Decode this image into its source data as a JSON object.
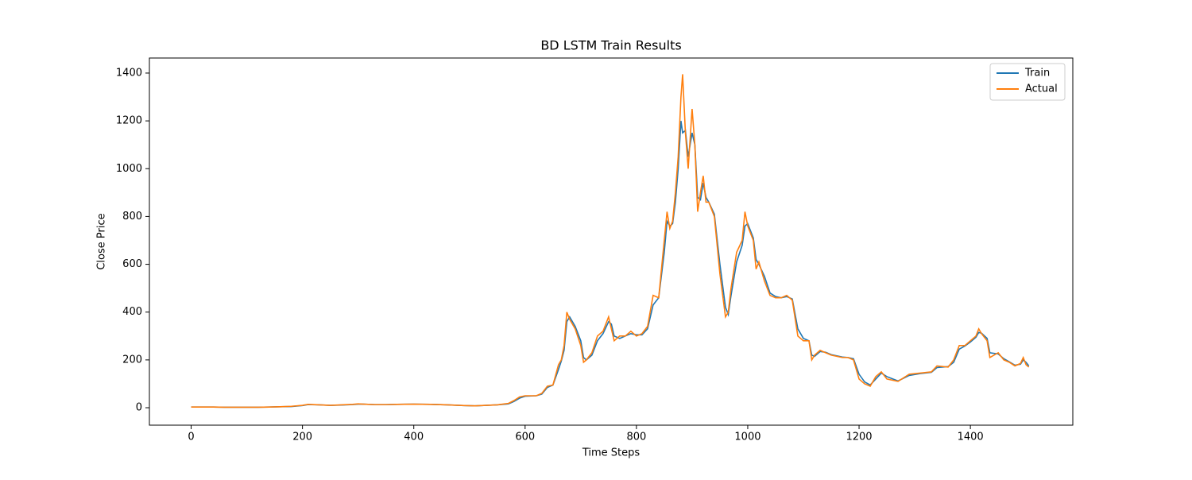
{
  "chart_data": {
    "type": "line",
    "title": "BD LSTM Train Results",
    "x_label": "Time Steps",
    "y_label": "Close Price",
    "x": [
      0,
      20,
      40,
      60,
      80,
      100,
      120,
      140,
      160,
      180,
      200,
      210,
      230,
      250,
      270,
      290,
      300,
      310,
      330,
      350,
      370,
      400,
      430,
      460,
      490,
      510,
      530,
      550,
      570,
      580,
      590,
      600,
      620,
      630,
      640,
      650,
      660,
      665,
      670,
      675,
      680,
      690,
      700,
      705,
      710,
      720,
      730,
      740,
      750,
      755,
      760,
      770,
      780,
      790,
      800,
      810,
      820,
      830,
      840,
      850,
      855,
      860,
      865,
      870,
      875,
      880,
      883,
      888,
      893,
      900,
      905,
      910,
      915,
      920,
      925,
      930,
      940,
      950,
      960,
      965,
      970,
      980,
      990,
      995,
      1000,
      1010,
      1015,
      1020,
      1030,
      1040,
      1050,
      1060,
      1070,
      1080,
      1090,
      1100,
      1110,
      1115,
      1120,
      1130,
      1140,
      1150,
      1170,
      1180,
      1190,
      1200,
      1210,
      1220,
      1230,
      1240,
      1250,
      1270,
      1290,
      1310,
      1330,
      1340,
      1360,
      1370,
      1380,
      1390,
      1400,
      1410,
      1415,
      1420,
      1430,
      1435,
      1450,
      1460,
      1470,
      1480,
      1490,
      1495,
      1500,
      1505
    ],
    "series": [
      {
        "name": "Train",
        "color": "#1f77b4",
        "values": [
          3,
          3,
          3,
          2,
          2,
          2,
          2,
          3,
          4,
          5,
          9,
          13,
          12,
          10,
          11,
          13,
          15,
          15,
          13,
          13,
          14,
          15,
          14,
          12,
          9,
          8,
          10,
          12,
          16,
          26,
          40,
          48,
          50,
          57,
          85,
          95,
          160,
          195,
          240,
          360,
          380,
          340,
          280,
          210,
          200,
          220,
          280,
          310,
          360,
          350,
          300,
          290,
          300,
          310,
          305,
          305,
          330,
          430,
          460,
          650,
          780,
          760,
          770,
          860,
          1000,
          1200,
          1150,
          1160,
          1050,
          1150,
          1100,
          880,
          870,
          940,
          880,
          860,
          810,
          600,
          420,
          390,
          470,
          610,
          680,
          760,
          770,
          710,
          620,
          600,
          550,
          480,
          465,
          460,
          465,
          455,
          330,
          290,
          280,
          220,
          215,
          235,
          232,
          222,
          212,
          210,
          205,
          140,
          108,
          95,
          120,
          145,
          130,
          112,
          135,
          143,
          148,
          168,
          172,
          190,
          245,
          258,
          275,
          295,
          315,
          312,
          290,
          230,
          225,
          205,
          192,
          178,
          182,
          200,
          190,
          175
        ]
      },
      {
        "name": "Actual",
        "color": "#ff7f0e",
        "values": [
          3,
          3,
          3,
          2,
          2,
          2,
          2,
          3,
          4,
          6,
          10,
          14,
          12,
          10,
          12,
          14,
          16,
          15,
          13,
          13,
          14,
          15,
          14,
          12,
          9,
          8,
          10,
          12,
          18,
          30,
          45,
          50,
          50,
          60,
          90,
          95,
          180,
          200,
          260,
          400,
          370,
          330,
          260,
          190,
          200,
          230,
          300,
          320,
          380,
          330,
          280,
          300,
          300,
          320,
          300,
          310,
          340,
          470,
          460,
          700,
          820,
          750,
          780,
          900,
          1050,
          1300,
          1395,
          1150,
          1000,
          1250,
          1100,
          820,
          900,
          970,
          860,
          860,
          800,
          560,
          380,
          400,
          500,
          650,
          700,
          820,
          760,
          700,
          580,
          610,
          530,
          470,
          460,
          460,
          470,
          450,
          300,
          280,
          280,
          200,
          220,
          240,
          230,
          220,
          210,
          210,
          200,
          120,
          100,
          90,
          130,
          150,
          120,
          110,
          140,
          145,
          150,
          175,
          170,
          200,
          260,
          260,
          280,
          300,
          330,
          310,
          280,
          210,
          230,
          200,
          190,
          175,
          185,
          210,
          180,
          170
        ]
      }
    ],
    "xlim": [
      -75,
      1584
    ],
    "ylim": [
      -73,
      1463
    ],
    "xticks": [
      0,
      200,
      400,
      600,
      800,
      1000,
      1200,
      1400
    ],
    "yticks": [
      0,
      200,
      400,
      600,
      800,
      1000,
      1200,
      1400
    ],
    "legend": "upper right"
  }
}
